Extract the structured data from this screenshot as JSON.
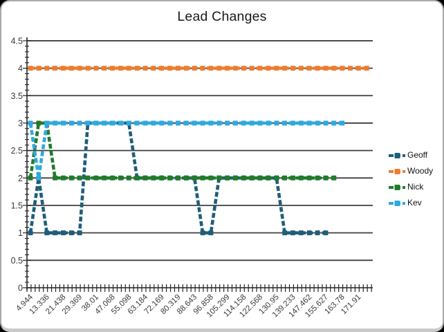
{
  "window": {
    "type": "chart-window"
  },
  "chart_data": {
    "type": "line",
    "title": "Lead Changes",
    "line_style": "dashed",
    "marker": "square",
    "grid": true,
    "legend_position": "right",
    "ylim": [
      0,
      4.5
    ],
    "y_tick_labels": [
      "0",
      "0.5",
      "1",
      "1.5",
      "2",
      "2.5",
      "3",
      "3.5",
      "4",
      "4.5"
    ],
    "x_tick_labels": [
      "4.944",
      "13.336",
      "21.438",
      "29.369",
      "38.01",
      "47.068",
      "55.098",
      "63.184",
      "72.169",
      "80.319",
      "88.643",
      "96.858",
      "105.299",
      "114.158",
      "122.568",
      "130.95",
      "139.233",
      "147.462",
      "155.627",
      "163.78",
      "171.91"
    ],
    "x_label_every_n_points": 2,
    "axis_color": "#262626",
    "grid_color": "#3f3f3f",
    "label_color": "#3a3a3a",
    "series": [
      {
        "name": "Geoff",
        "color": "#1F5D7A",
        "values": [
          1,
          2,
          1,
          1,
          1,
          1,
          1,
          3,
          3,
          3,
          3,
          3,
          3,
          2,
          2,
          2,
          2,
          2,
          2,
          2,
          2,
          1,
          1,
          2,
          2,
          2,
          2,
          2,
          2,
          2,
          2,
          1,
          1,
          1,
          1,
          1,
          1
        ]
      },
      {
        "name": "Woody",
        "color": "#ED7D31",
        "values": [
          4,
          4,
          4,
          4,
          4,
          4,
          4,
          4,
          4,
          4,
          4,
          4,
          4,
          4,
          4,
          4,
          4,
          4,
          4,
          4,
          4,
          4,
          4,
          4,
          4,
          4,
          4,
          4,
          4,
          4,
          4,
          4,
          4,
          4,
          4,
          4,
          4,
          4,
          4,
          4,
          4,
          4
        ]
      },
      {
        "name": "Nick",
        "color": "#217B2D",
        "values": [
          2,
          3,
          3,
          2,
          2,
          2,
          2,
          2,
          2,
          2,
          2,
          2,
          2,
          2,
          2,
          2,
          2,
          2,
          2,
          2,
          2,
          2,
          2,
          2,
          2,
          2,
          2,
          2,
          2,
          2,
          2,
          2,
          2,
          2,
          2,
          2,
          2,
          2
        ]
      },
      {
        "name": "Kev",
        "color": "#2FA9DF",
        "values": [
          3,
          2,
          3,
          3,
          3,
          3,
          3,
          3,
          3,
          3,
          3,
          3,
          3,
          3,
          3,
          3,
          3,
          3,
          3,
          3,
          3,
          3,
          3,
          3,
          3,
          3,
          3,
          3,
          3,
          3,
          3,
          3,
          3,
          3,
          3,
          3,
          3,
          3,
          3
        ]
      }
    ]
  }
}
